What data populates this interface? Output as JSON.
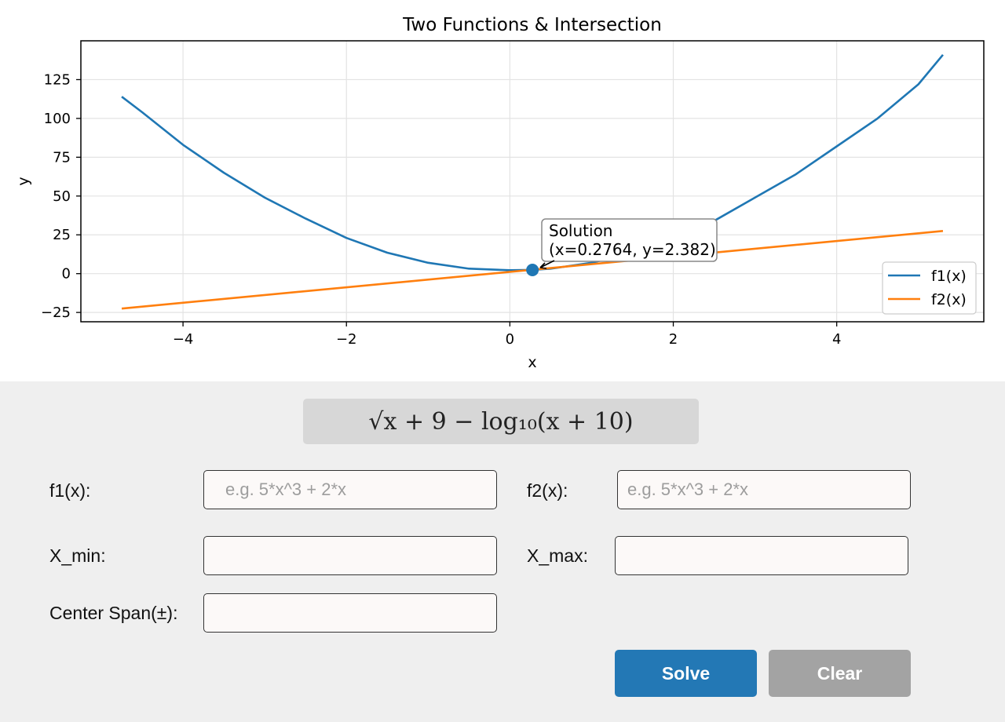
{
  "chart_data": {
    "type": "line",
    "title": "Two Functions & Intersection",
    "xlabel": "x",
    "ylabel": "y",
    "xlim": [
      -5.25,
      5.8
    ],
    "ylim": [
      -31,
      150
    ],
    "xticks": [
      -4,
      -2,
      0,
      2,
      4
    ],
    "yticks": [
      -25,
      0,
      25,
      50,
      75,
      100,
      125
    ],
    "xtick_labels": [
      "−4",
      "−2",
      "0",
      "2",
      "4"
    ],
    "ytick_labels": [
      "−25",
      "0",
      "25",
      "50",
      "75",
      "100",
      "125"
    ],
    "grid": true,
    "legend_position": "lower-right",
    "series": [
      {
        "name": "f1(x)",
        "color": "#1f77b4",
        "x": [
          -4.75,
          -4.5,
          -4.0,
          -3.5,
          -3.0,
          -2.5,
          -2.0,
          -1.5,
          -1.0,
          -0.5,
          0.0,
          0.2764,
          0.5,
          1.0,
          1.5,
          2.0,
          2.5,
          3.0,
          3.5,
          4.0,
          4.5,
          5.0,
          5.3
        ],
        "y": [
          114.0,
          104.0,
          83.0,
          65.0,
          49.0,
          35.5,
          23.0,
          13.5,
          7.0,
          3.2,
          2.2,
          2.382,
          3.2,
          7.0,
          13.5,
          22.0,
          34.0,
          49.0,
          64.0,
          82.0,
          100.0,
          122.0,
          141.0
        ]
      },
      {
        "name": "f2(x)",
        "color": "#ff7f0e",
        "x": [
          -4.75,
          5.3
        ],
        "y": [
          -22.5,
          27.5
        ]
      }
    ],
    "solution": {
      "x": 0.2764,
      "y": 2.382,
      "label_line1": "Solution",
      "label_line2": "(x=0.2764, y=2.382)",
      "color": "#1f77b4"
    }
  },
  "formula": {
    "display": "√x + 9 − log₁₀(x + 10)"
  },
  "form": {
    "f1_label": "f1(x):",
    "f1_placeholder": "e.g. 5*x^3 + 2*x",
    "f1_value": "",
    "f2_label": "f2(x):",
    "f2_placeholder": "e.g. 5*x^3 + 2*x",
    "f2_value": "",
    "xmin_label": "X_min:",
    "xmin_value": "",
    "xmax_label": "X_max:",
    "xmax_value": "",
    "span_label": "Center Span(±):",
    "span_value": ""
  },
  "buttons": {
    "solve_label": "Solve",
    "solve_color": "#2378b5",
    "clear_label": "Clear",
    "clear_color": "#a3a3a3"
  }
}
